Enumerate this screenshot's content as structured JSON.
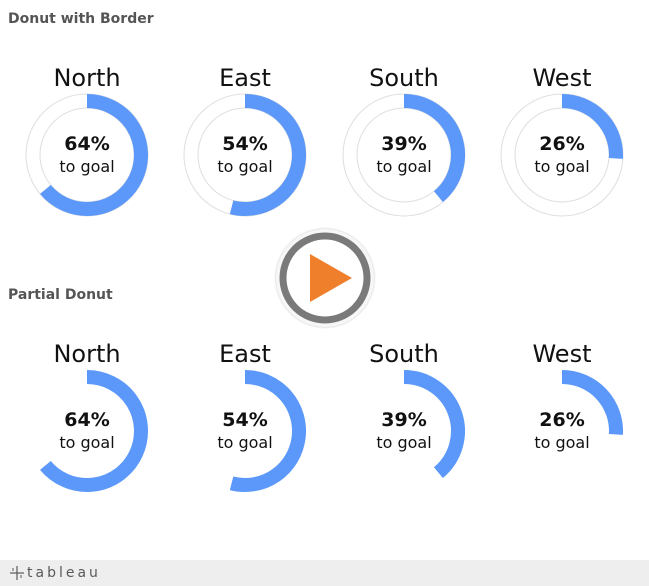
{
  "colors": {
    "progress": "#5b98fa",
    "border": "#dedede",
    "play_ring": "#7a7a7a",
    "play_triangle": "#f07f2b"
  },
  "chart_data": [
    {
      "type": "donut",
      "title": "Donut with Border",
      "categories": [
        "North",
        "East",
        "South",
        "West"
      ],
      "values": [
        64,
        54,
        39,
        26
      ],
      "value_labels": [
        "64%",
        "54%",
        "39%",
        "26%"
      ],
      "sublabel": "to goal",
      "unit": "%",
      "full_circle_border": true
    },
    {
      "type": "donut",
      "title": "Partial Donut",
      "categories": [
        "North",
        "East",
        "South",
        "West"
      ],
      "values": [
        64,
        54,
        39,
        26
      ],
      "value_labels": [
        "64%",
        "54%",
        "39%",
        "26%"
      ],
      "sublabel": "to goal",
      "unit": "%",
      "full_circle_border": false
    }
  ],
  "play_button": {
    "icon": "play-icon"
  },
  "footer": {
    "logo_text": "tableau",
    "logo_icon": "tableau-cross-icon"
  }
}
